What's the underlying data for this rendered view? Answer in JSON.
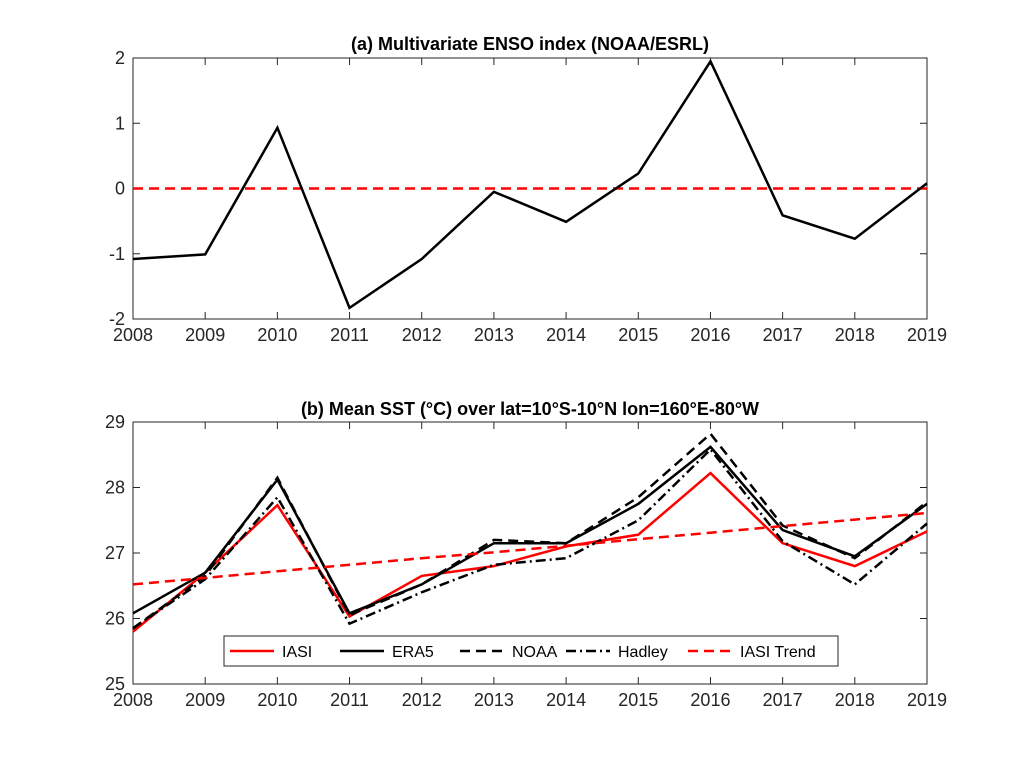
{
  "chart_data": [
    {
      "id": "panel-a",
      "type": "line",
      "title": "(a) Multivariate ENSO index (NOAA/ESRL)",
      "xlabel": "",
      "ylabel": "",
      "xlim": [
        2008,
        2019
      ],
      "ylim": [
        -2,
        2
      ],
      "xticks": [
        "2008",
        "2009",
        "2010",
        "2011",
        "2012",
        "2013",
        "2014",
        "2015",
        "2016",
        "2017",
        "2018",
        "2019"
      ],
      "yticks": [
        "-2",
        "-1",
        "0",
        "1",
        "2"
      ],
      "x": [
        2008,
        2009,
        2010,
        2011,
        2012,
        2013,
        2014,
        2015,
        2016,
        2017,
        2018,
        2019
      ],
      "series": [
        {
          "color": "#000000",
          "dash": "solid",
          "values": [
            -1.08,
            -1.01,
            0.93,
            -1.83,
            -1.08,
            -0.05,
            -0.51,
            0.23,
            1.95,
            -0.41,
            -0.77,
            0.08
          ]
        }
      ],
      "reference_lines": [
        {
          "y": 0,
          "color": "#ff0000",
          "dash": "dashed"
        }
      ],
      "grid": false
    },
    {
      "id": "panel-b",
      "type": "line",
      "title": "(b) Mean SST (°C) over lat=10°S-10°N lon=160°E-80°W",
      "xlabel": "",
      "ylabel": "",
      "xlim": [
        2008,
        2019
      ],
      "ylim": [
        25,
        29
      ],
      "xticks": [
        "2008",
        "2009",
        "2010",
        "2011",
        "2012",
        "2013",
        "2014",
        "2015",
        "2016",
        "2017",
        "2018",
        "2019"
      ],
      "yticks": [
        "25",
        "26",
        "27",
        "28",
        "29"
      ],
      "x": [
        2008,
        2009,
        2010,
        2011,
        2012,
        2013,
        2014,
        2015,
        2016,
        2017,
        2018,
        2019
      ],
      "series": [
        {
          "name": "IASI",
          "color": "#ff0000",
          "dash": "solid",
          "values": [
            25.8,
            26.7,
            27.73,
            26.03,
            26.65,
            26.8,
            27.1,
            27.28,
            28.22,
            27.15,
            26.8,
            27.33
          ]
        },
        {
          "name": "ERA5",
          "color": "#000000",
          "dash": "solid",
          "values": [
            26.08,
            26.7,
            28.12,
            26.08,
            26.52,
            27.15,
            27.15,
            27.75,
            28.62,
            27.35,
            26.95,
            27.75
          ]
        },
        {
          "name": "NOAA",
          "color": "#000000",
          "dash": "dashed",
          "values": [
            25.85,
            26.65,
            28.15,
            26.05,
            26.52,
            27.2,
            27.15,
            27.85,
            28.82,
            27.42,
            26.92,
            27.78
          ]
        },
        {
          "name": "Hadley",
          "color": "#000000",
          "dash": "dashdot",
          "values": [
            25.85,
            26.6,
            27.85,
            25.92,
            26.4,
            26.82,
            26.92,
            27.5,
            28.58,
            27.18,
            26.52,
            27.45
          ]
        },
        {
          "name": "IASI Trend",
          "color": "#ff0000",
          "dash": "dashed",
          "values": [
            26.52,
            26.62,
            26.72,
            26.82,
            26.92,
            27.01,
            27.11,
            27.21,
            27.31,
            27.41,
            27.51,
            27.61
          ]
        }
      ],
      "legend": {
        "placement": "bottom-center",
        "orientation": "horizontal",
        "entries": [
          "IASI",
          "ERA5",
          "NOAA",
          "Hadley",
          "IASI Trend"
        ]
      },
      "grid": false
    }
  ]
}
